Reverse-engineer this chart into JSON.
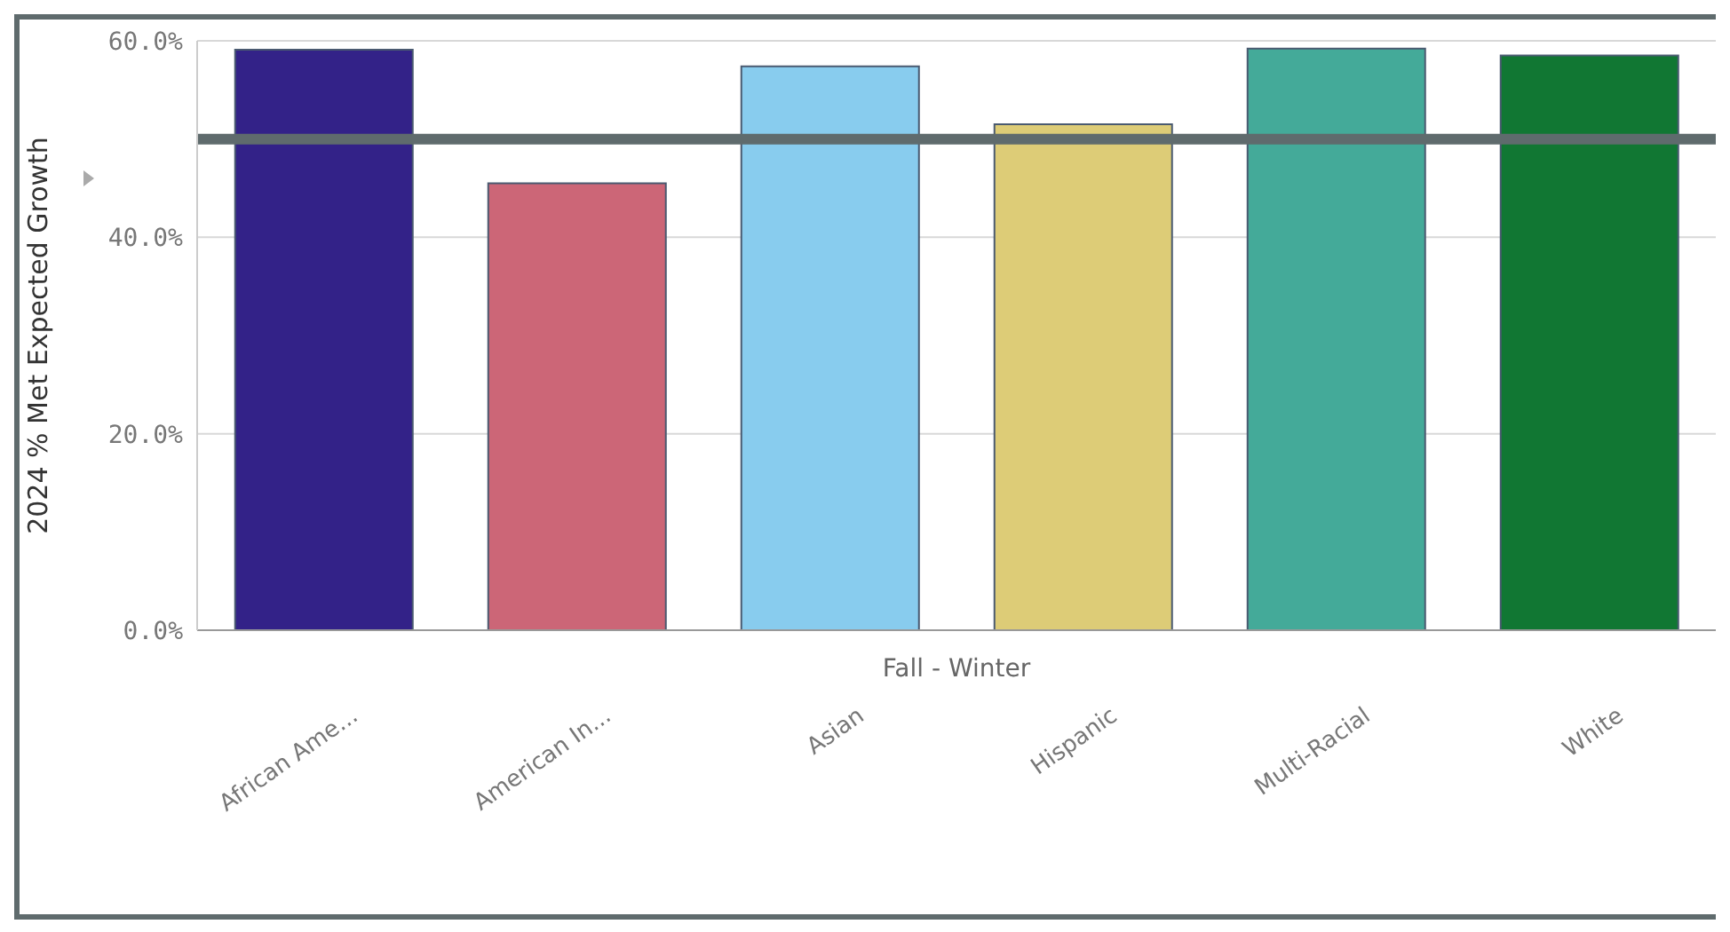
{
  "chart_data": {
    "type": "bar",
    "categories": [
      "African Ame...",
      "American In...",
      "Asian",
      "Hispanic",
      "Multi-Racial",
      "White"
    ],
    "values": [
      59.1,
      45.5,
      57.4,
      51.5,
      59.2,
      58.5
    ],
    "colors": [
      "#332288",
      "#cc6677",
      "#88ccee",
      "#ddcc77",
      "#44aa99",
      "#117733"
    ],
    "xlabel": "Fall - Winter",
    "ylabel": "2024 % Met Expected Growth",
    "ylim": [
      0,
      60
    ],
    "yticks": [
      {
        "value": 0,
        "label": "0.0%"
      },
      {
        "value": 20,
        "label": "20.0%"
      },
      {
        "value": 40,
        "label": "40.0%"
      },
      {
        "value": 60,
        "label": "60.0%"
      }
    ],
    "grid": "y",
    "ref_lines": [
      {
        "axis": "y",
        "value": 50,
        "label": null,
        "color": "#5f6b6d"
      }
    ]
  }
}
